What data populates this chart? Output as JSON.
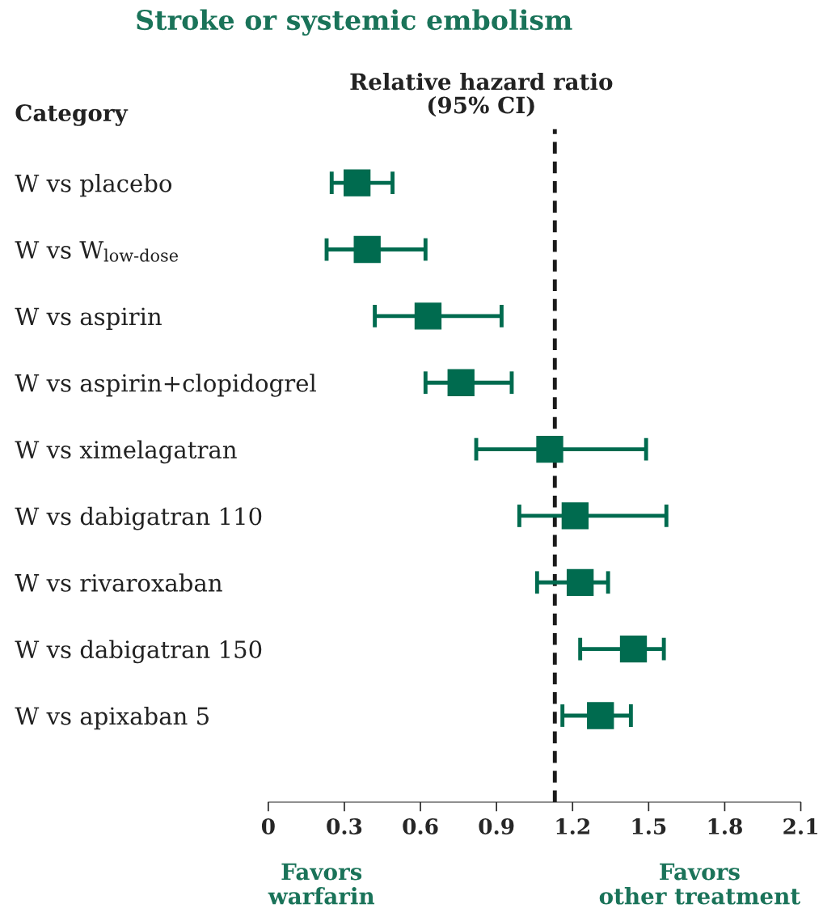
{
  "chart_data": {
    "type": "scatter",
    "orientation": "horizontal",
    "title": "Stroke or systemic embolism",
    "xlabel": "Relative hazard ratio\n(95% CI)",
    "ylabel": "Category",
    "categories": [
      "W vs placebo",
      "W vs W$_{low-dose}$",
      "W vs aspirin",
      "W vs aspirin+clopidogrel",
      "W vs ximelagatran",
      "W vs dabigatran 110",
      "W vs rivaroxaban",
      "W vs dabigatran 150",
      "W vs apixaban 5"
    ],
    "series": [
      {
        "color": "#006b4f",
        "values": [
          0.35,
          0.39,
          0.63,
          0.76,
          1.11,
          1.21,
          1.23,
          1.44,
          1.31
        ],
        "errors": [
          [
            0.25,
            0.49
          ],
          [
            0.23,
            0.62
          ],
          [
            0.42,
            0.92
          ],
          [
            0.62,
            0.96
          ],
          [
            0.82,
            1.49
          ],
          [
            0.99,
            1.57
          ],
          [
            1.06,
            1.34
          ],
          [
            1.23,
            1.56
          ],
          [
            1.16,
            1.43
          ]
        ]
      }
    ],
    "marker": "square",
    "xlim": [
      0,
      2.1
    ],
    "xticks": [
      0,
      0.3,
      0.6,
      0.9,
      1.2,
      1.5,
      1.8,
      2.1
    ],
    "ref_lines": [
      {
        "axis": "x",
        "value": 1.13,
        "color": "#1a1a1a",
        "line_style": "dashed"
      }
    ],
    "annotations": [
      "Favors\nwarfarin",
      "Favors\nother treatment"
    ],
    "grid": false,
    "legend": false
  }
}
